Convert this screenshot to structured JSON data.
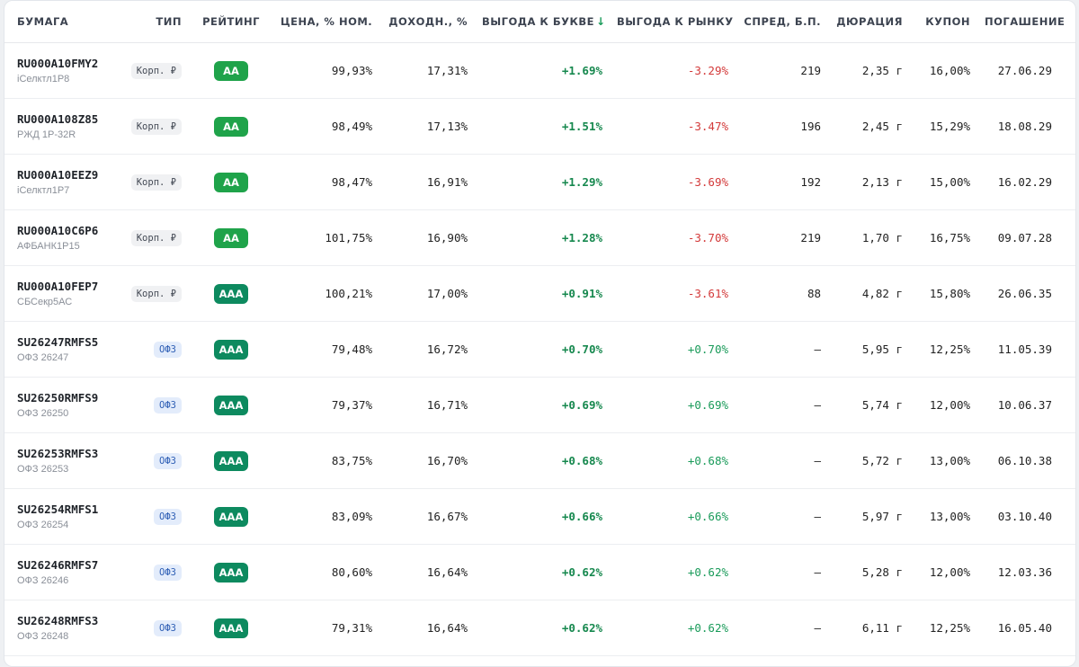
{
  "columns": {
    "bond": "БУМАГА",
    "type": "ТИП",
    "rating": "РЕЙТИНГ",
    "price": "ЦЕНА, % НОМ.",
    "yield": "ДОХОДН., %",
    "benefit_letter": "ВЫГОДА К БУКВЕ",
    "benefit_market": "ВЫГОДА К РЫНКУ",
    "spread": "СПРЕД, Б.П.",
    "duration": "ДЮРАЦИЯ",
    "coupon": "КУПОН",
    "maturity": "ПОГАШЕНИЕ"
  },
  "sort_indicator": "↓",
  "colors": {
    "rating_aa": "#1fa34a",
    "rating_aaa": "#0d8a5f",
    "positive": "#1a9b5a",
    "negative": "#d33a3a"
  },
  "rows": [
    {
      "ticker": "RU000A10FMY2",
      "issuer": "iСелктл1Р8",
      "type": "Корп. ₽",
      "type_kind": "corp",
      "rating": "AA",
      "price": "99,93%",
      "yield": "17,31%",
      "benefit_letter": "+1.69%",
      "benefit_market": "-3.29%",
      "benefit_market_sign": "neg",
      "spread": "219",
      "duration": "2,35 г",
      "coupon": "16,00%",
      "maturity": "27.06.29"
    },
    {
      "ticker": "RU000A108Z85",
      "issuer": "РЖД 1Р-32R",
      "type": "Корп. ₽",
      "type_kind": "corp",
      "rating": "AA",
      "price": "98,49%",
      "yield": "17,13%",
      "benefit_letter": "+1.51%",
      "benefit_market": "-3.47%",
      "benefit_market_sign": "neg",
      "spread": "196",
      "duration": "2,45 г",
      "coupon": "15,29%",
      "maturity": "18.08.29"
    },
    {
      "ticker": "RU000A10EEZ9",
      "issuer": "iСелктл1Р7",
      "type": "Корп. ₽",
      "type_kind": "corp",
      "rating": "AA",
      "price": "98,47%",
      "yield": "16,91%",
      "benefit_letter": "+1.29%",
      "benefit_market": "-3.69%",
      "benefit_market_sign": "neg",
      "spread": "192",
      "duration": "2,13 г",
      "coupon": "15,00%",
      "maturity": "16.02.29"
    },
    {
      "ticker": "RU000A10C6P6",
      "issuer": "АФБАНК1Р15",
      "type": "Корп. ₽",
      "type_kind": "corp",
      "rating": "AA",
      "price": "101,75%",
      "yield": "16,90%",
      "benefit_letter": "+1.28%",
      "benefit_market": "-3.70%",
      "benefit_market_sign": "neg",
      "spread": "219",
      "duration": "1,70 г",
      "coupon": "16,75%",
      "maturity": "09.07.28"
    },
    {
      "ticker": "RU000A10FEP7",
      "issuer": "СБСекр5АС",
      "type": "Корп. ₽",
      "type_kind": "corp",
      "rating": "AAA",
      "price": "100,21%",
      "yield": "17,00%",
      "benefit_letter": "+0.91%",
      "benefit_market": "-3.61%",
      "benefit_market_sign": "neg",
      "spread": "88",
      "duration": "4,82 г",
      "coupon": "15,80%",
      "maturity": "26.06.35"
    },
    {
      "ticker": "SU26247RMFS5",
      "issuer": "ОФЗ 26247",
      "type": "ОФЗ",
      "type_kind": "ofz",
      "rating": "AAA",
      "price": "79,48%",
      "yield": "16,72%",
      "benefit_letter": "+0.70%",
      "benefit_market": "+0.70%",
      "benefit_market_sign": "pos",
      "spread": "—",
      "duration": "5,95 г",
      "coupon": "12,25%",
      "maturity": "11.05.39"
    },
    {
      "ticker": "SU26250RMFS9",
      "issuer": "ОФЗ 26250",
      "type": "ОФЗ",
      "type_kind": "ofz",
      "rating": "AAA",
      "price": "79,37%",
      "yield": "16,71%",
      "benefit_letter": "+0.69%",
      "benefit_market": "+0.69%",
      "benefit_market_sign": "pos",
      "spread": "—",
      "duration": "5,74 г",
      "coupon": "12,00%",
      "maturity": "10.06.37"
    },
    {
      "ticker": "SU26253RMFS3",
      "issuer": "ОФЗ 26253",
      "type": "ОФЗ",
      "type_kind": "ofz",
      "rating": "AAA",
      "price": "83,75%",
      "yield": "16,70%",
      "benefit_letter": "+0.68%",
      "benefit_market": "+0.68%",
      "benefit_market_sign": "pos",
      "spread": "—",
      "duration": "5,72 г",
      "coupon": "13,00%",
      "maturity": "06.10.38"
    },
    {
      "ticker": "SU26254RMFS1",
      "issuer": "ОФЗ 26254",
      "type": "ОФЗ",
      "type_kind": "ofz",
      "rating": "AAA",
      "price": "83,09%",
      "yield": "16,67%",
      "benefit_letter": "+0.66%",
      "benefit_market": "+0.66%",
      "benefit_market_sign": "pos",
      "spread": "—",
      "duration": "5,97 г",
      "coupon": "13,00%",
      "maturity": "03.10.40"
    },
    {
      "ticker": "SU26246RMFS7",
      "issuer": "ОФЗ 26246",
      "type": "ОФЗ",
      "type_kind": "ofz",
      "rating": "AAA",
      "price": "80,60%",
      "yield": "16,64%",
      "benefit_letter": "+0.62%",
      "benefit_market": "+0.62%",
      "benefit_market_sign": "pos",
      "spread": "—",
      "duration": "5,28 г",
      "coupon": "12,00%",
      "maturity": "12.03.36"
    },
    {
      "ticker": "SU26248RMFS3",
      "issuer": "ОФЗ 26248",
      "type": "ОФЗ",
      "type_kind": "ofz",
      "rating": "AAA",
      "price": "79,31%",
      "yield": "16,64%",
      "benefit_letter": "+0.62%",
      "benefit_market": "+0.62%",
      "benefit_market_sign": "pos",
      "spread": "—",
      "duration": "6,11 г",
      "coupon": "12,25%",
      "maturity": "16.05.40"
    }
  ]
}
